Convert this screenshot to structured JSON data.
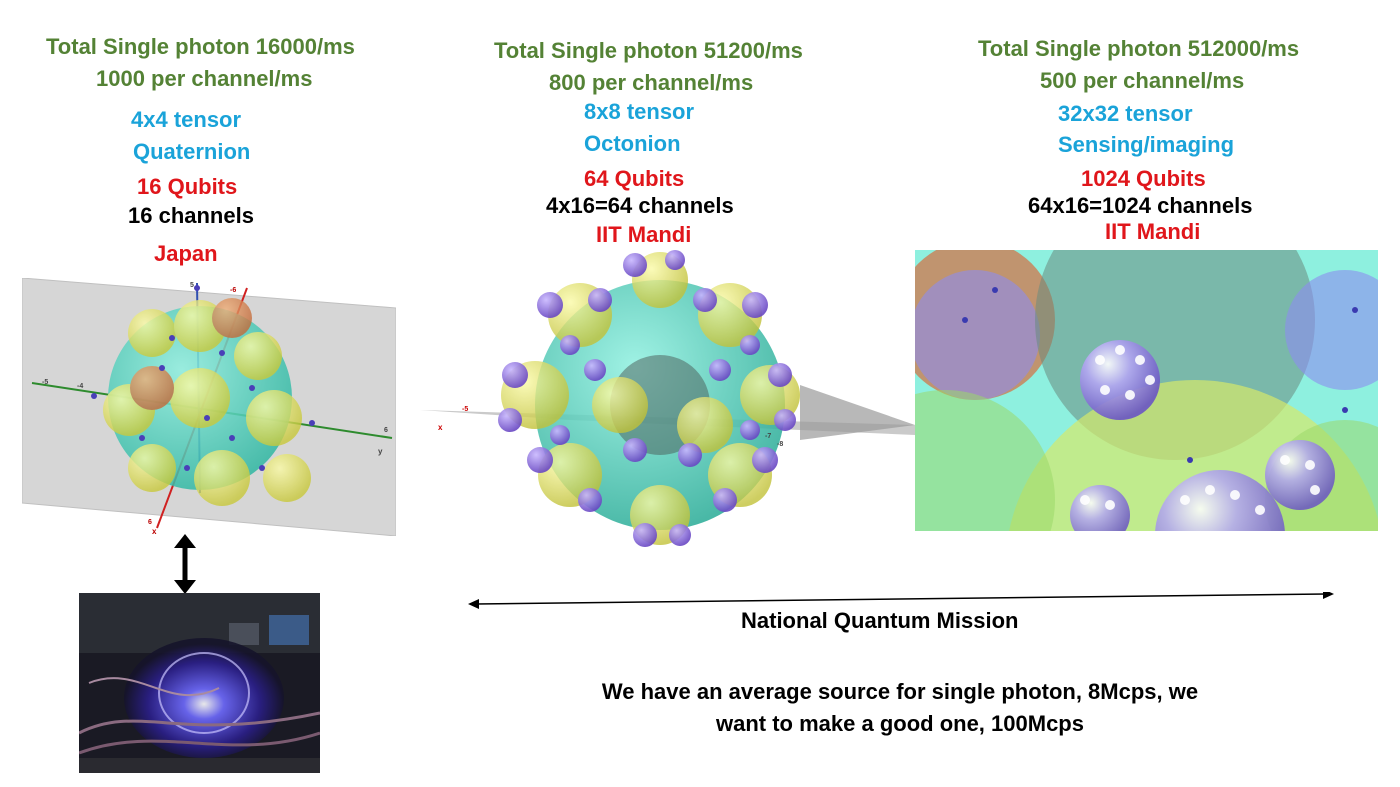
{
  "left": {
    "total": "Total Single photon 16000/ms",
    "per_channel": "1000 per channel/ms",
    "tensor": "4x4 tensor",
    "algebra": "Quaternion",
    "qubits": "16 Qubits",
    "channels": "16 channels",
    "location": "Japan",
    "axis_labels": [
      "5",
      "-6",
      "-5",
      "-4",
      "6",
      "y",
      "6",
      "x"
    ]
  },
  "middle": {
    "total": "Total Single photon 51200/ms",
    "per_channel": "800 per channel/ms",
    "tensor": "8x8 tensor",
    "algebra": "Octonion",
    "qubits": "64 Qubits",
    "channels": "4x16=64 channels",
    "location": "IIT Mandi",
    "axis_labels": [
      "x",
      "-5",
      "-7",
      "-8"
    ]
  },
  "right": {
    "total": "Total Single photon 512000/ms",
    "per_channel": "500 per channel/ms",
    "tensor": "32x32 tensor",
    "algebra": "Sensing/imaging",
    "qubits": "1024 Qubits",
    "channels": "64x16=1024 channels",
    "location": "IIT Mandi"
  },
  "mission_label": "National Quantum Mission",
  "bottom_note": "We have an average source for single photon, 8Mcps, we want to make a good one, 100Mcps",
  "colors": {
    "green": "#548235",
    "blue": "#1aa3d9",
    "red": "#e0161b",
    "teal_sphere": "#3fc9b3",
    "yellow_sphere": "#e3e35a",
    "purple_sphere": "#7a5ccc"
  }
}
